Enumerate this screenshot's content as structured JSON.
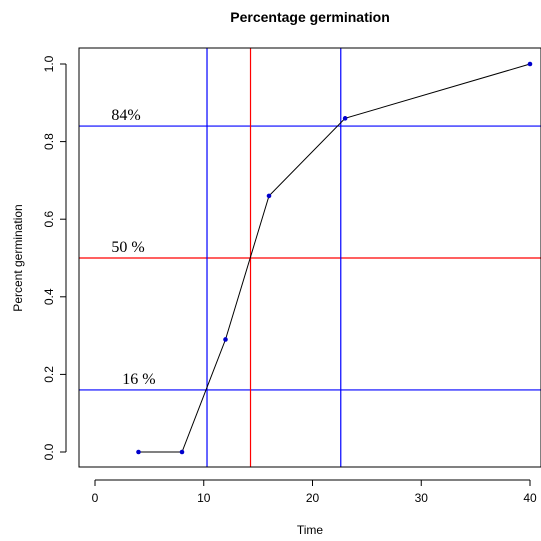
{
  "chart_data": {
    "type": "line",
    "title": "Percentage germination",
    "xlabel": "Time",
    "ylabel": "Percent germination",
    "xlim": [
      0,
      40
    ],
    "ylim": [
      0,
      1
    ],
    "x_ticks": [
      "0",
      "10",
      "20",
      "30",
      "40"
    ],
    "y_ticks": [
      "0.0",
      "0.2",
      "0.4",
      "0.6",
      "0.8",
      "1.0"
    ],
    "grid": false,
    "series": [
      {
        "x": [
          4,
          8,
          12,
          16,
          23,
          40
        ],
        "y": [
          0.0,
          0.0,
          0.29,
          0.66,
          0.86,
          1.0
        ],
        "color": "#000000",
        "marker_color": "#0000cc"
      }
    ],
    "reference_lines": {
      "horizontal": [
        {
          "y": 0.84,
          "color": "#0000ff"
        },
        {
          "y": 0.5,
          "color": "#ff0000"
        },
        {
          "y": 0.16,
          "color": "#0000ff"
        }
      ],
      "vertical": [
        {
          "x": 10.3,
          "color": "#0000ff"
        },
        {
          "x": 14.3,
          "color": "#ff0000"
        },
        {
          "x": 22.6,
          "color": "#0000ff"
        }
      ]
    },
    "annotations": [
      {
        "text": "84%",
        "x": 1.5,
        "y": 0.84
      },
      {
        "text": "50 %",
        "x": 1.5,
        "y": 0.5
      },
      {
        "text": "16 %",
        "x": 2.5,
        "y": 0.16
      }
    ]
  }
}
